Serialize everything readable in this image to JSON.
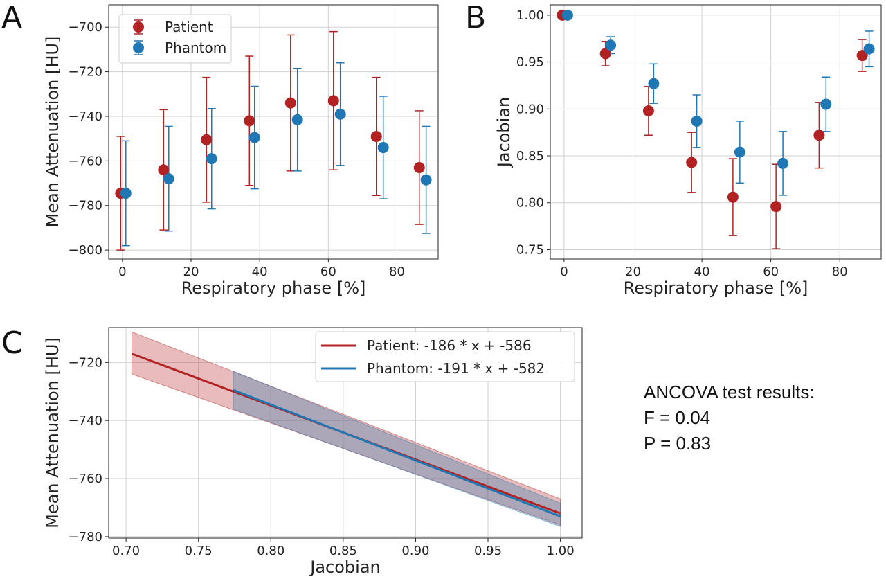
{
  "colors": {
    "patient": "#b22222",
    "phantom": "#1f77b4"
  },
  "chart_data": [
    {
      "panel": "A",
      "type": "scatter",
      "xlabel": "Respiratory phase [%]",
      "ylabel": "Mean Attenuation [HU]",
      "xlim": [
        -4,
        92
      ],
      "ylim": [
        -804,
        -690
      ],
      "xticks": [
        0,
        20,
        40,
        60,
        80
      ],
      "yticks": [
        -800,
        -780,
        -760,
        -740,
        -720,
        -700
      ],
      "grid": true,
      "legend": "top-left",
      "series": [
        {
          "name": "Patient",
          "color": "#b22222",
          "x": [
            -0.5,
            12,
            24.5,
            37,
            49,
            61.5,
            74,
            86.5
          ],
          "y": [
            -774.5,
            -764,
            -750.5,
            -742,
            -734,
            -733,
            -749,
            -763
          ],
          "err": [
            25.5,
            27,
            28,
            29,
            30.5,
            31,
            26.5,
            25.5
          ]
        },
        {
          "name": "Phantom",
          "color": "#1f77b4",
          "x": [
            1,
            13.5,
            26,
            38.5,
            51,
            63.5,
            76,
            88.5
          ],
          "y": [
            -774.5,
            -768,
            -759,
            -749.5,
            -741.5,
            -739,
            -754,
            -768.5
          ],
          "err": [
            23.5,
            23.5,
            22.5,
            23,
            23,
            23,
            23,
            24
          ]
        }
      ]
    },
    {
      "panel": "B",
      "type": "scatter",
      "xlabel": "Respiratory phase [%]",
      "ylabel": "Jacobian",
      "xlim": [
        -4,
        92
      ],
      "ylim": [
        0.74,
        1.011
      ],
      "xticks": [
        0,
        20,
        40,
        60,
        80
      ],
      "yticks": [
        0.75,
        0.8,
        0.85,
        0.9,
        0.95,
        1.0
      ],
      "grid": true,
      "series": [
        {
          "name": "Patient",
          "color": "#b22222",
          "x": [
            -0.5,
            12,
            24.5,
            37,
            49,
            61.5,
            74,
            86.5
          ],
          "y": [
            1.0,
            0.959,
            0.898,
            0.843,
            0.806,
            0.796,
            0.872,
            0.957
          ],
          "err": [
            0.0,
            0.013,
            0.026,
            0.032,
            0.041,
            0.045,
            0.035,
            0.017
          ]
        },
        {
          "name": "Phantom",
          "color": "#1f77b4",
          "x": [
            1,
            13.5,
            26,
            38.5,
            51,
            63.5,
            76,
            88.5
          ],
          "y": [
            1.0,
            0.968,
            0.927,
            0.887,
            0.854,
            0.842,
            0.905,
            0.964
          ],
          "err": [
            0.0,
            0.009,
            0.021,
            0.028,
            0.033,
            0.034,
            0.029,
            0.019
          ]
        }
      ]
    },
    {
      "panel": "C",
      "type": "line",
      "xlabel": "Jacobian",
      "ylabel": "Mean Attenuation [HU]",
      "xlim": [
        0.688,
        1.015
      ],
      "ylim": [
        -780.5,
        -708
      ],
      "xticks": [
        0.7,
        0.75,
        0.8,
        0.85,
        0.9,
        0.95,
        1.0
      ],
      "yticks": [
        -780,
        -760,
        -740,
        -720
      ],
      "grid": true,
      "legend": "top-right",
      "series": [
        {
          "name": "Patient: -186 * x + -586",
          "color": "#b22222",
          "x": [
            0.704,
            1.0
          ],
          "y": [
            -717,
            -772
          ],
          "band_lower": [
            -724,
            -776
          ],
          "band_upper": [
            -709.5,
            -767
          ]
        },
        {
          "name": "Phantom: -191 * x + -582",
          "color": "#1f77b4",
          "x": [
            0.774,
            1.0
          ],
          "y": [
            -729.5,
            -773
          ],
          "band_lower": [
            -736,
            -776.5
          ],
          "band_upper": [
            -723,
            -768.5
          ]
        }
      ]
    }
  ],
  "panel_labels": {
    "a": "A",
    "b": "B",
    "c": "C"
  },
  "ancova": {
    "title": "ANCOVA test results:",
    "f": "F = 0.04",
    "p": "P = 0.83"
  }
}
